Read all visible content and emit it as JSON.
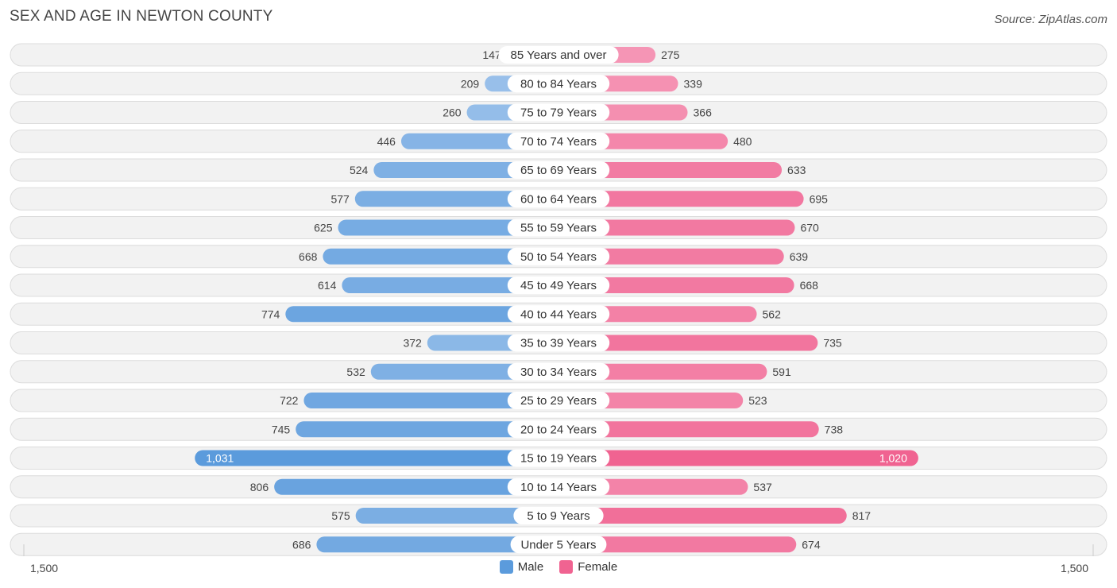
{
  "title": "SEX AND AGE IN NEWTON COUNTY",
  "source": "Source: ZipAtlas.com",
  "axis": {
    "left_label": "1,500",
    "right_label": "1,500"
  },
  "legend": {
    "male": "Male",
    "female": "Female"
  },
  "colors": {
    "male_light": "#a9c9ee",
    "male_dark": "#5b9bdc",
    "female_light": "#f7a9c3",
    "female_dark": "#f06391"
  },
  "chart_data": {
    "type": "bar",
    "orientation": "horizontal-diverging",
    "title": "SEX AND AGE IN NEWTON COUNTY",
    "xlim": [
      -1500,
      1500
    ],
    "categories": [
      "85 Years and over",
      "80 to 84 Years",
      "75 to 79 Years",
      "70 to 74 Years",
      "65 to 69 Years",
      "60 to 64 Years",
      "55 to 59 Years",
      "50 to 54 Years",
      "45 to 49 Years",
      "40 to 44 Years",
      "35 to 39 Years",
      "30 to 34 Years",
      "25 to 29 Years",
      "20 to 24 Years",
      "15 to 19 Years",
      "10 to 14 Years",
      "5 to 9 Years",
      "Under 5 Years"
    ],
    "series": [
      {
        "name": "Male",
        "values": [
          147,
          209,
          260,
          446,
          524,
          577,
          625,
          668,
          614,
          774,
          372,
          532,
          722,
          745,
          1031,
          806,
          575,
          686
        ],
        "labels": [
          "147",
          "209",
          "260",
          "446",
          "524",
          "577",
          "625",
          "668",
          "614",
          "774",
          "372",
          "532",
          "722",
          "745",
          "1,031",
          "806",
          "575",
          "686"
        ]
      },
      {
        "name": "Female",
        "values": [
          275,
          339,
          366,
          480,
          633,
          695,
          670,
          639,
          668,
          562,
          735,
          591,
          523,
          738,
          1020,
          537,
          817,
          674
        ],
        "labels": [
          "275",
          "339",
          "366",
          "480",
          "633",
          "695",
          "670",
          "639",
          "668",
          "562",
          "735",
          "591",
          "523",
          "738",
          "1,020",
          "537",
          "817",
          "674"
        ]
      }
    ],
    "legend_position": "bottom-center"
  }
}
